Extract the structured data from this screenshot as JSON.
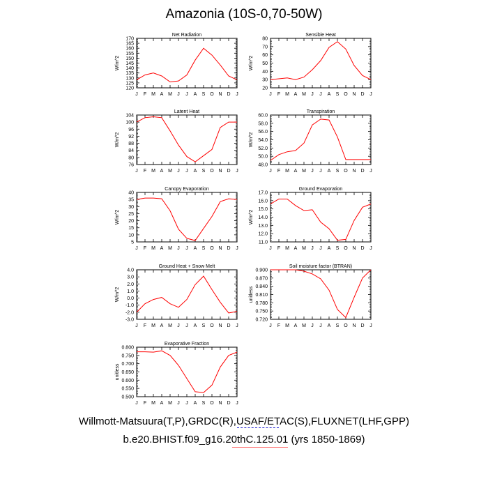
{
  "title": "Amazonia (10S-0,70-50W)",
  "footer": {
    "line1": "Willmott-Matsuura(T,P),GRDC(R),USAF/ETAC(S),FLUXNET(LHF,GPP)",
    "line2": "b.e20.BHIST.f09_g16.20thC.125.01 (yrs 1850-1869)"
  },
  "colors": {
    "line": "#ff0000",
    "axis": "#000000",
    "underline_blue": "#3b3bd6",
    "underline_red": "#ff5555"
  },
  "chart_data": [
    {
      "type": "line",
      "title": "Net Radiation",
      "ylabel": "W/m^2",
      "categories": [
        "J",
        "F",
        "M",
        "A",
        "M",
        "J",
        "J",
        "A",
        "S",
        "O",
        "N",
        "D",
        "J"
      ],
      "ylim": [
        120,
        170
      ],
      "yticks": [
        "120",
        "125",
        "130",
        "135",
        "140",
        "145",
        "150",
        "155",
        "160",
        "165",
        "170"
      ],
      "values": [
        128,
        133,
        135,
        132,
        126,
        127,
        133,
        148,
        160,
        153,
        143,
        132,
        128
      ]
    },
    {
      "type": "line",
      "title": "Sensible Heat",
      "ylabel": "W/m^2",
      "categories": [
        "J",
        "F",
        "M",
        "A",
        "M",
        "J",
        "J",
        "A",
        "S",
        "O",
        "N",
        "D",
        "J"
      ],
      "ylim": [
        20,
        80
      ],
      "yticks": [
        "20",
        "30",
        "40",
        "50",
        "60",
        "70",
        "80"
      ],
      "values": [
        30,
        31,
        32,
        30,
        33,
        42,
        53,
        69,
        76,
        67,
        47,
        35,
        30
      ]
    },
    {
      "type": "line",
      "title": "Latent Heat",
      "ylabel": "W/m^2",
      "categories": [
        "J",
        "F",
        "M",
        "A",
        "M",
        "J",
        "J",
        "A",
        "S",
        "O",
        "N",
        "D",
        "J"
      ],
      "ylim": [
        76,
        104
      ],
      "yticks": [
        "76",
        "80",
        "84",
        "88",
        "92",
        "96",
        "100",
        "104"
      ],
      "values": [
        100,
        102.5,
        103,
        102.5,
        95,
        87,
        80.5,
        77.5,
        81,
        84.5,
        97,
        100,
        100
      ]
    },
    {
      "type": "line",
      "title": "Transpiration",
      "ylabel": "W/m^2",
      "categories": [
        "J",
        "F",
        "M",
        "A",
        "M",
        "J",
        "J",
        "A",
        "S",
        "O",
        "N",
        "D",
        "J"
      ],
      "ylim": [
        48,
        60
      ],
      "yticks": [
        "48.0",
        "50.0",
        "52.0",
        "54.0",
        "56.0",
        "58.0",
        "60.0"
      ],
      "values": [
        49,
        50.4,
        51.1,
        51.4,
        53.2,
        57.6,
        59,
        58.8,
        54.7,
        49.2,
        49.2,
        49.2,
        49.2
      ]
    },
    {
      "type": "line",
      "title": "Canopy Evaporation",
      "ylabel": "W/m^2",
      "categories": [
        "J",
        "F",
        "M",
        "A",
        "M",
        "J",
        "J",
        "A",
        "S",
        "O",
        "N",
        "D",
        "J"
      ],
      "ylim": [
        5,
        40
      ],
      "yticks": [
        "5",
        "10",
        "15",
        "20",
        "25",
        "30",
        "35",
        "40"
      ],
      "values": [
        35,
        36,
        36,
        35.5,
        27,
        14,
        7.5,
        6,
        14.5,
        23,
        33.5,
        35.5,
        35
      ]
    },
    {
      "type": "line",
      "title": "Ground Evaporation",
      "ylabel": "W/m^2",
      "categories": [
        "J",
        "F",
        "M",
        "A",
        "M",
        "J",
        "J",
        "A",
        "S",
        "O",
        "N",
        "D",
        "J"
      ],
      "ylim": [
        11,
        17
      ],
      "yticks": [
        "11.0",
        "12.0",
        "13.0",
        "14.0",
        "15.0",
        "16.0",
        "17.0"
      ],
      "values": [
        15.6,
        16.2,
        16.2,
        15.4,
        14.8,
        14.9,
        13.4,
        12.6,
        11.2,
        11.3,
        13.6,
        15.2,
        15.6
      ]
    },
    {
      "type": "line",
      "title": "Ground Heat + Snow Melt",
      "ylabel": "W/m^2",
      "categories": [
        "J",
        "F",
        "M",
        "A",
        "M",
        "J",
        "J",
        "A",
        "S",
        "O",
        "N",
        "D",
        "J"
      ],
      "ylim": [
        -3,
        4
      ],
      "yticks": [
        "-3.0",
        "-2.0",
        "-1.0",
        "0.0",
        "1.0",
        "2.0",
        "3.0",
        "4.0"
      ],
      "values": [
        -2,
        -0.8,
        -0.2,
        0.1,
        -0.8,
        -1.3,
        -0.2,
        1.9,
        3.1,
        1.2,
        -0.6,
        -2.1,
        -1.9
      ]
    },
    {
      "type": "line",
      "title": "Soil moisture factor (BTRAN)",
      "ylabel": "unitless",
      "categories": [
        "J",
        "F",
        "M",
        "A",
        "M",
        "J",
        "J",
        "A",
        "S",
        "O",
        "N",
        "D",
        "J"
      ],
      "ylim": [
        0.72,
        0.9
      ],
      "yticks": [
        "0.720",
        "0.750",
        "0.780",
        "0.810",
        "0.840",
        "0.870",
        "0.900"
      ],
      "values": [
        0.9,
        0.9,
        0.9,
        0.9,
        0.895,
        0.885,
        0.867,
        0.826,
        0.756,
        0.726,
        0.8,
        0.87,
        0.9
      ]
    },
    {
      "type": "line",
      "title": "Evaporative Fraction",
      "ylabel": "unitless",
      "categories": [
        "J",
        "F",
        "M",
        "A",
        "M",
        "J",
        "J",
        "A",
        "S",
        "O",
        "N",
        "D",
        "J"
      ],
      "ylim": [
        0.5,
        0.8
      ],
      "yticks": [
        "0.500",
        "0.550",
        "0.600",
        "0.650",
        "0.700",
        "0.750",
        "0.800"
      ],
      "values": [
        0.772,
        0.772,
        0.77,
        0.778,
        0.75,
        0.69,
        0.61,
        0.53,
        0.525,
        0.57,
        0.68,
        0.75,
        0.77
      ]
    }
  ]
}
